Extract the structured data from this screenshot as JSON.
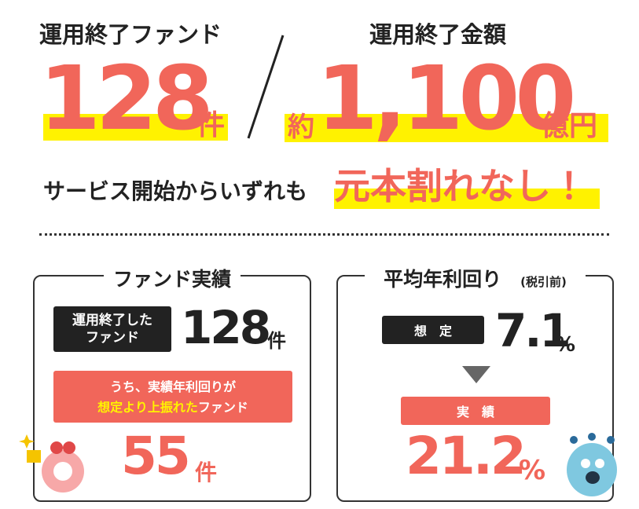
{
  "header": {
    "fund_label": "運用終了ファンド",
    "fund_count": "128",
    "fund_unit": "件",
    "amount_label": "運用終了金額",
    "amount_prefix": "約",
    "amount": "1,100",
    "amount_unit": "億円"
  },
  "tagline": {
    "lead": "サービス開始からいずれも",
    "highlight": "元本割れなし！"
  },
  "fund_results": {
    "title": "ファンド実績",
    "label_line1": "運用終了した",
    "label_line2": "ファンド",
    "count": "128",
    "count_unit": "件",
    "note_line1": "うち、実績年利回りが",
    "note_highlight": "想定より上振れた",
    "note_rest": "ファンド",
    "outperform_count": "55",
    "outperform_unit": "件"
  },
  "average_yield": {
    "title": "平均年利回り",
    "title_note": "(税引前)",
    "expected_label": "想　定",
    "expected": "7.1",
    "expected_unit": "%",
    "actual_label": "実　績",
    "actual": "21.2",
    "actual_unit": "%"
  }
}
